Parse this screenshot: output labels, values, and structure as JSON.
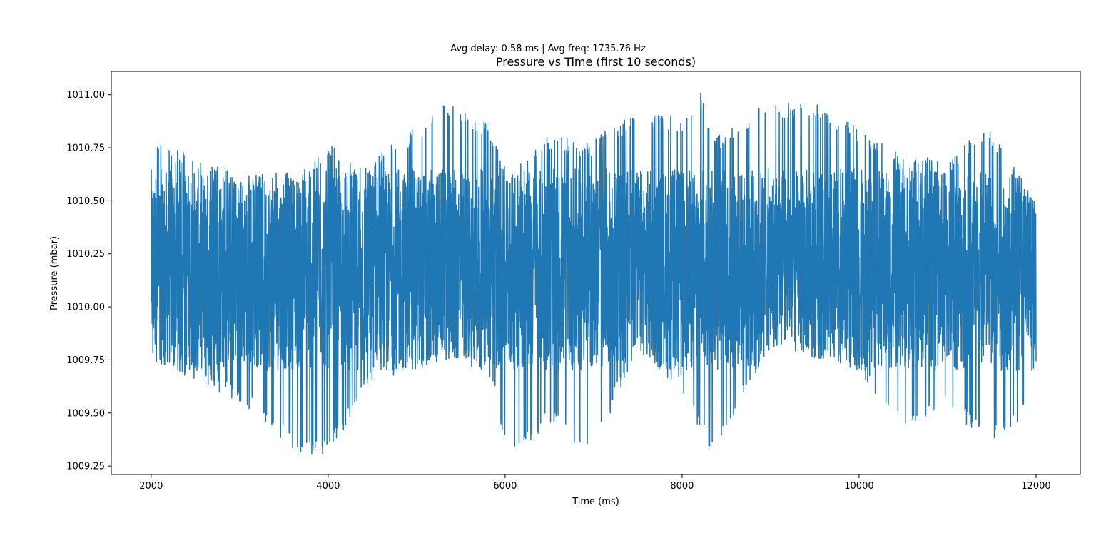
{
  "chart_data": {
    "type": "line",
    "suptitle": "Avg delay: 0.58 ms | Avg freq: 1735.76 Hz",
    "title": "Pressure vs Time (first 10 seconds)",
    "xlabel": "Time (ms)",
    "ylabel": "Pressure (mbar)",
    "xlim": [
      1550,
      12500
    ],
    "ylim": [
      1009.21,
      1011.11
    ],
    "xticks": [
      2000,
      4000,
      6000,
      8000,
      10000,
      12000
    ],
    "yticks": [
      1009.25,
      1009.5,
      1009.75,
      1010.0,
      1010.25,
      1010.5,
      1010.75,
      1011.0
    ],
    "ytick_labels": [
      "1009.25",
      "1009.50",
      "1009.75",
      "1010.00",
      "1010.25",
      "1010.50",
      "1010.75",
      "1011.00"
    ],
    "series": [
      {
        "color": "#1f77b4",
        "x_range": [
          2000,
          12000
        ],
        "sample_interval_ms": 0.58,
        "description_values": {
          "typical_band": [
            1009.75,
            1010.5
          ],
          "max": 1011.03,
          "min": 1009.27
        },
        "envelope": [
          {
            "x": 2000,
            "low": 1009.75,
            "high": 1010.81
          },
          {
            "x": 2500,
            "low": 1009.65,
            "high": 1010.71
          },
          {
            "x": 3000,
            "low": 1009.55,
            "high": 1010.62
          },
          {
            "x": 3700,
            "low": 1009.3,
            "high": 1010.64
          },
          {
            "x": 4000,
            "low": 1009.3,
            "high": 1010.76
          },
          {
            "x": 4500,
            "low": 1009.65,
            "high": 1010.71
          },
          {
            "x": 5000,
            "low": 1009.7,
            "high": 1010.85
          },
          {
            "x": 5300,
            "low": 1009.75,
            "high": 1010.97
          },
          {
            "x": 5800,
            "low": 1009.7,
            "high": 1010.87
          },
          {
            "x": 6050,
            "low": 1009.27,
            "high": 1010.62
          },
          {
            "x": 6500,
            "low": 1009.45,
            "high": 1010.81
          },
          {
            "x": 6950,
            "low": 1009.27,
            "high": 1010.78
          },
          {
            "x": 7500,
            "low": 1009.8,
            "high": 1010.93
          },
          {
            "x": 8000,
            "low": 1009.6,
            "high": 1010.9
          },
          {
            "x": 8200,
            "low": 1009.4,
            "high": 1011.03
          },
          {
            "x": 8350,
            "low": 1009.3,
            "high": 1010.8
          },
          {
            "x": 9000,
            "low": 1009.8,
            "high": 1010.97
          },
          {
            "x": 9600,
            "low": 1009.75,
            "high": 1010.95
          },
          {
            "x": 10000,
            "low": 1009.7,
            "high": 1010.85
          },
          {
            "x": 10500,
            "low": 1009.4,
            "high": 1010.71
          },
          {
            "x": 11000,
            "low": 1009.55,
            "high": 1010.7
          },
          {
            "x": 11450,
            "low": 1009.33,
            "high": 1010.87
          },
          {
            "x": 12000,
            "low": 1009.53,
            "high": 1010.49
          }
        ]
      }
    ],
    "grid": false,
    "legend": "none"
  }
}
